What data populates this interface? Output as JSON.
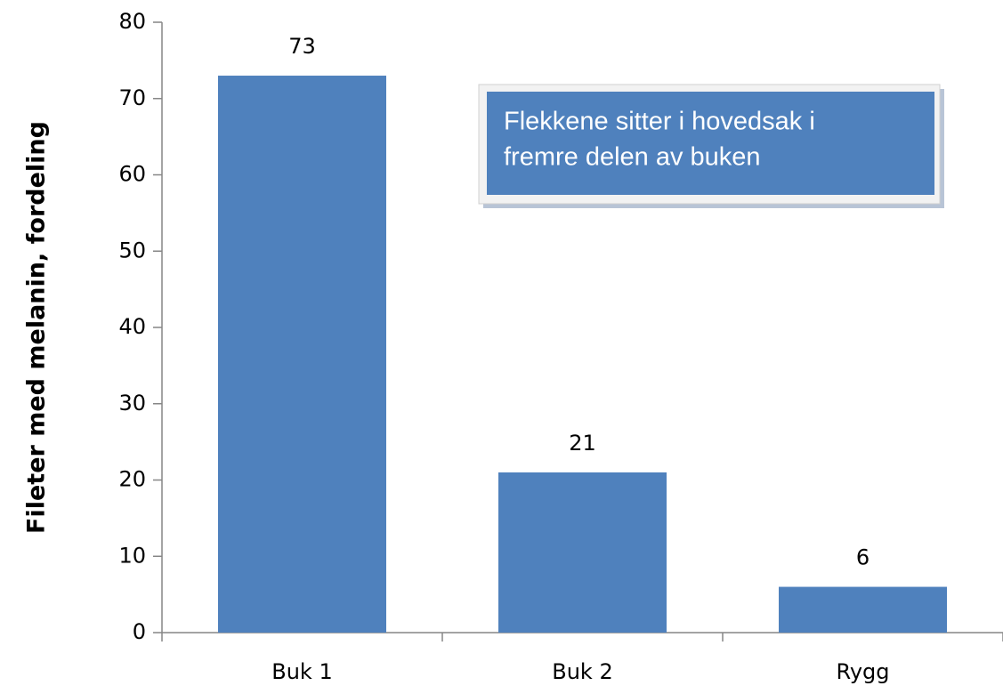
{
  "chart_data": {
    "type": "bar",
    "y_label": "Fileter med melanin, fordeling",
    "categories": [
      "Buk 1",
      "Buk 2",
      "Rygg"
    ],
    "values": [
      73,
      21,
      6
    ],
    "color": "#4f81bd",
    "ylim": [
      0,
      80
    ],
    "yticks": [
      0,
      10,
      20,
      30,
      40,
      50,
      60,
      70,
      80
    ],
    "grid": false,
    "annotation": [
      "Flekkene sitter i hovedsak i",
      "fremre delen av buken"
    ]
  }
}
